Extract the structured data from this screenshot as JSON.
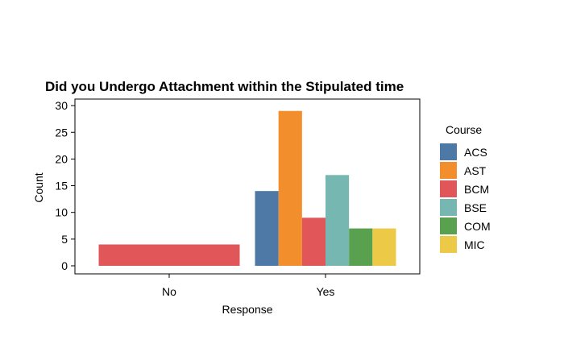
{
  "chart_data": {
    "type": "bar",
    "title": "Did you Undergo Attachment within the Stipulated time",
    "xlabel": "Response",
    "ylabel": "Count",
    "categories": [
      "No",
      "Yes"
    ],
    "ylim": [
      0,
      30
    ],
    "yticks": [
      0,
      5,
      10,
      15,
      20,
      25,
      30
    ],
    "grid": false,
    "legend_title": "Course",
    "legend_position": "right",
    "series": [
      {
        "name": "ACS",
        "color": "#4E79A7",
        "values": [
          null,
          14
        ]
      },
      {
        "name": "AST",
        "color": "#F28E2B",
        "values": [
          null,
          29
        ]
      },
      {
        "name": "BCM",
        "color": "#E15759",
        "values": [
          4,
          9
        ]
      },
      {
        "name": "BSE",
        "color": "#76B7B2",
        "values": [
          null,
          17
        ]
      },
      {
        "name": "COM",
        "color": "#59A14F",
        "values": [
          null,
          7
        ]
      },
      {
        "name": "MIC",
        "color": "#EDC948",
        "values": [
          null,
          7
        ]
      }
    ]
  }
}
